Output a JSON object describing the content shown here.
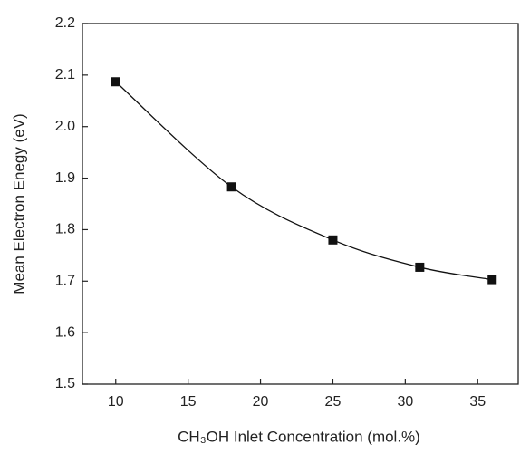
{
  "chart_data": {
    "type": "scatter",
    "x_label": "CH₃OH Inlet Concentration (mol.%)",
    "y_label": "Mean Electron Enegy (eV)",
    "x": [
      10,
      18,
      25,
      31,
      36
    ],
    "values": [
      2.087,
      1.883,
      1.78,
      1.727,
      1.703
    ],
    "color": "#111111",
    "curve": true,
    "xlim": [
      7.7,
      37.8
    ],
    "xticks": [
      10,
      15,
      20,
      25,
      30,
      35
    ],
    "ylim": [
      1.5,
      2.2
    ],
    "yticks": [
      1.5,
      1.6,
      1.7,
      1.8,
      1.9,
      {
        "value": 2,
        "label": "2.0"
      },
      2.1,
      2.2
    ]
  }
}
